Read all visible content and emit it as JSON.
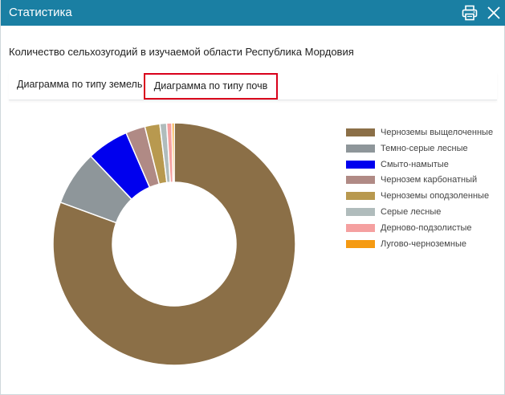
{
  "window": {
    "title": "Статистика",
    "print_icon": "printer-icon",
    "close_icon": "close-icon",
    "titlebar_color": "#1a7fa3"
  },
  "subtitle": "Количество сельхозугодий в изучаемой области Республика Мордовия",
  "tabs": [
    {
      "label": "Диаграмма по типу земель",
      "active": false
    },
    {
      "label": "Диаграмма по типу почв",
      "active": true
    }
  ],
  "chart_data": {
    "type": "pie",
    "donut": true,
    "legend_position": "right",
    "series": [
      {
        "name": "Черноземы выщелоченные",
        "value": 80.6,
        "color": "#8b6f47"
      },
      {
        "name": "Темно-серые лесные",
        "value": 7.3,
        "color": "#8e969a"
      },
      {
        "name": "Смыто-намытые",
        "value": 5.6,
        "color": "#0000ee"
      },
      {
        "name": "Чернозем карбонатный",
        "value": 2.6,
        "color": "#b08a85"
      },
      {
        "name": "Черноземы оподзоленные",
        "value": 2.0,
        "color": "#b8994f"
      },
      {
        "name": "Серые лесные",
        "value": 0.9,
        "color": "#b0bcbc"
      },
      {
        "name": "Дерново-подзолистые",
        "value": 0.7,
        "color": "#f5a0a0"
      },
      {
        "name": "Лугово-черноземные",
        "value": 0.3,
        "color": "#f59a12"
      }
    ]
  }
}
